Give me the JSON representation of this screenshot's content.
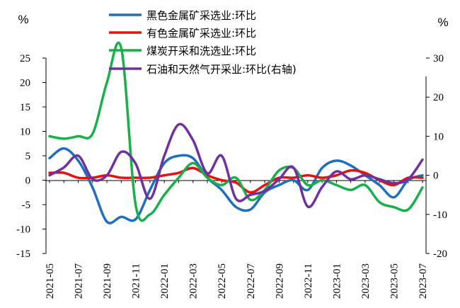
{
  "chart_data": {
    "type": "line",
    "left_unit": "%",
    "right_unit": "%",
    "grid": false,
    "legend_position": "top-center",
    "y_left": {
      "lim": [
        -15,
        25
      ],
      "ticks": [
        -15,
        -10,
        -5,
        0,
        5,
        10,
        15,
        20,
        25
      ],
      "labels": [
        "-15",
        "-10",
        "-5",
        "0",
        "5",
        "10",
        "15",
        "20",
        "25"
      ]
    },
    "y_right": {
      "lim": [
        -20,
        30
      ],
      "ticks": [
        -20,
        -10,
        0,
        10,
        20,
        30
      ],
      "labels": [
        "-20",
        "-10",
        "0",
        "10",
        "20",
        "30"
      ]
    },
    "x_tick_labels": [
      "2021-05",
      "2021-07",
      "2021-09",
      "2021-11",
      "2022-01",
      "2022-03",
      "2022-05",
      "2022-07",
      "2022-09",
      "2022-11",
      "2023-01",
      "2023-03",
      "2023-05",
      "2023-07"
    ],
    "x": [
      "2021-05",
      "2021-06",
      "2021-07",
      "2021-08",
      "2021-09",
      "2021-10",
      "2021-11",
      "2021-12",
      "2022-01",
      "2022-02",
      "2022-03",
      "2022-04",
      "2022-05",
      "2022-06",
      "2022-07",
      "2022-08",
      "2022-09",
      "2022-10",
      "2022-11",
      "2022-12",
      "2023-01",
      "2023-02",
      "2023-03",
      "2023-04",
      "2023-05",
      "2023-06",
      "2023-07"
    ],
    "series": [
      {
        "name": "黑色金属矿采选业:环比",
        "color": "#1f6fc0",
        "axis": "left",
        "values": [
          4.5,
          6.5,
          4.0,
          -1.5,
          -8.5,
          -7.5,
          -8.0,
          -2.0,
          3.5,
          5.0,
          4.5,
          0.5,
          -2.0,
          -5.5,
          -6.0,
          -2.5,
          -1.0,
          0.0,
          -2.0,
          2.5,
          4.0,
          3.0,
          1.0,
          -1.0,
          -3.5,
          0.0,
          1.0
        ]
      },
      {
        "name": "有色金属矿采选业:环比",
        "color": "#e81010",
        "axis": "left",
        "values": [
          1.5,
          1.5,
          0.5,
          0.5,
          1.0,
          0.5,
          0.5,
          0.5,
          1.0,
          1.5,
          2.5,
          1.0,
          0.0,
          -0.5,
          -2.5,
          -1.0,
          0.5,
          0.5,
          1.0,
          0.5,
          1.0,
          2.0,
          1.5,
          0.0,
          -1.0,
          0.5,
          0.5
        ]
      },
      {
        "name": "煤炭开采和洗选业:环比",
        "color": "#17b04a",
        "axis": "left",
        "values": [
          9.0,
          8.5,
          9.0,
          9.5,
          20.0,
          27.0,
          -5.0,
          -7.0,
          -3.0,
          0.5,
          3.5,
          0.5,
          -1.0,
          0.5,
          -4.0,
          -2.0,
          2.0,
          2.5,
          -1.0,
          0.0,
          -1.0,
          -2.0,
          -1.0,
          -4.5,
          -5.5,
          -6.0,
          -1.5
        ]
      },
      {
        "name": "石油和天然气开采业:环比(右轴)",
        "color": "#7030a0",
        "axis": "right",
        "values": [
          0.0,
          2.0,
          5.0,
          -1.0,
          0.0,
          6.0,
          3.0,
          -6.0,
          5.0,
          13.0,
          9.0,
          0.5,
          5.0,
          -6.0,
          -5.0,
          -4.0,
          -1.0,
          2.0,
          -8.0,
          -3.0,
          1.0,
          -1.0,
          0.0,
          -1.0,
          -2.0,
          -1.0,
          4.0
        ]
      }
    ]
  }
}
